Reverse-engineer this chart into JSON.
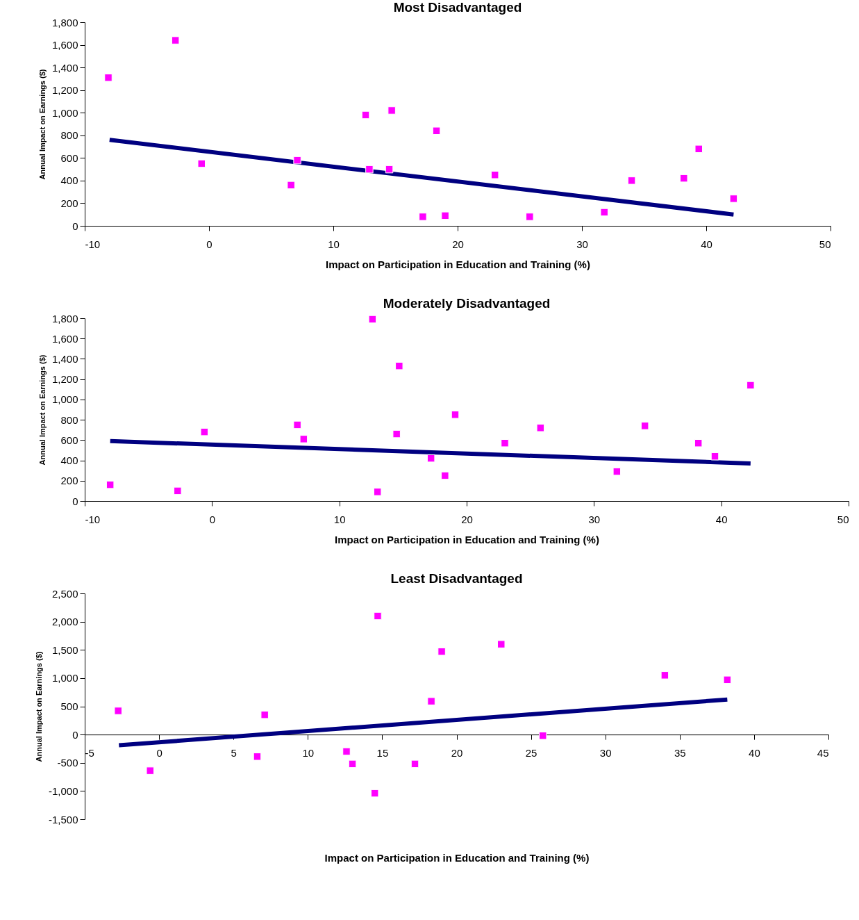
{
  "chart_data": [
    {
      "type": "scatter",
      "title": "Most Disadvantaged",
      "xlabel": "Impact on Participation in Education and Training (%)",
      "ylabel": "Annual Impact on Earnings ($)",
      "xlim": [
        -10,
        50
      ],
      "xticks": [
        -10,
        0,
        10,
        20,
        30,
        40,
        50
      ],
      "ylim": [
        0,
        1800
      ],
      "yticks": [
        0,
        200,
        400,
        600,
        800,
        {
          "value": 1000,
          "label": "1,000"
        },
        {
          "value": 1200,
          "label": "1,200"
        },
        {
          "value": 1400,
          "label": "1,400"
        },
        {
          "value": 1600,
          "label": "1,600"
        },
        {
          "value": 1800,
          "label": "1,800"
        }
      ],
      "grid": false,
      "series": [
        {
          "marker": "square",
          "color": "#ff00ff",
          "x": [
            -8.1,
            -2.7,
            -0.6,
            6.6,
            7.1,
            12.6,
            12.9,
            14.5,
            14.7,
            17.2,
            18.3,
            19.0,
            23.0,
            25.8,
            31.8,
            34.0,
            38.2,
            39.4,
            42.2
          ],
          "values": [
            1310,
            1640,
            550,
            360,
            580,
            980,
            500,
            500,
            1020,
            80,
            840,
            90,
            450,
            80,
            120,
            400,
            420,
            680,
            240
          ]
        },
        {
          "type": "line",
          "color": "#000080",
          "line_style": "solid",
          "x": [
            -8,
            42.2
          ],
          "values": [
            760,
            100
          ]
        }
      ]
    },
    {
      "type": "scatter",
      "title": "Moderately Disadvantaged",
      "xlabel": "Impact on Participation in Education and Training (%)",
      "ylabel": "Annual Impact on Earnings ($)",
      "xlim": [
        -10,
        50
      ],
      "xticks": [
        -10,
        0,
        10,
        20,
        30,
        40,
        50
      ],
      "ylim": [
        0,
        1800
      ],
      "yticks": [
        0,
        200,
        400,
        600,
        800,
        {
          "value": 1000,
          "label": "1,000"
        },
        {
          "value": 1200,
          "label": "1,200"
        },
        {
          "value": 1400,
          "label": "1,400"
        },
        {
          "value": 1600,
          "label": "1,600"
        },
        {
          "value": 1800,
          "label": "1,800"
        }
      ],
      "grid": false,
      "series": [
        {
          "marker": "square",
          "color": "#ff00ff",
          "x": [
            -8.0,
            -2.7,
            -0.6,
            6.7,
            7.2,
            12.6,
            13.0,
            14.5,
            14.7,
            17.2,
            18.3,
            19.1,
            23.0,
            25.8,
            31.8,
            34.0,
            38.2,
            39.5,
            42.3
          ],
          "values": [
            160,
            100,
            680,
            750,
            610,
            1790,
            90,
            660,
            1330,
            420,
            250,
            850,
            570,
            720,
            290,
            740,
            570,
            440,
            1140
          ]
        },
        {
          "type": "line",
          "color": "#000080",
          "line_style": "solid",
          "x": [
            -8,
            42.3
          ],
          "values": [
            590,
            370
          ]
        }
      ]
    },
    {
      "type": "scatter",
      "title": "Least Disadvantaged",
      "xlabel": "Impact on Participation in Education and Training (%)",
      "ylabel": "Annual Impact on Earnings ($)",
      "xlim": [
        -5,
        45
      ],
      "xticks": [
        -5,
        0,
        5,
        10,
        15,
        20,
        25,
        30,
        35,
        40,
        45
      ],
      "ylim": [
        -1500,
        2500
      ],
      "yticks": [
        {
          "value": -1500,
          "label": "-1,500"
        },
        {
          "value": -1000,
          "label": "-1,000"
        },
        -500,
        0,
        500,
        {
          "value": 1000,
          "label": "1,000"
        },
        {
          "value": 1500,
          "label": "1,500"
        },
        {
          "value": 2000,
          "label": "2,000"
        },
        {
          "value": 2500,
          "label": "2,500"
        }
      ],
      "grid": false,
      "series": [
        {
          "marker": "square",
          "color": "#ff00ff",
          "x": [
            -2.75,
            -0.6,
            6.6,
            7.1,
            12.6,
            13.0,
            14.5,
            14.7,
            17.2,
            18.3,
            19.0,
            23.0,
            25.8,
            34.0,
            38.2
          ],
          "values": [
            420,
            -640,
            -390,
            350,
            -300,
            -520,
            -1040,
            2100,
            -520,
            590,
            1470,
            1600,
            -20,
            1050,
            970
          ]
        },
        {
          "type": "line",
          "color": "#000080",
          "line_style": "solid",
          "x": [
            -2.7,
            38.2
          ],
          "values": [
            -190,
            620
          ]
        }
      ]
    }
  ]
}
